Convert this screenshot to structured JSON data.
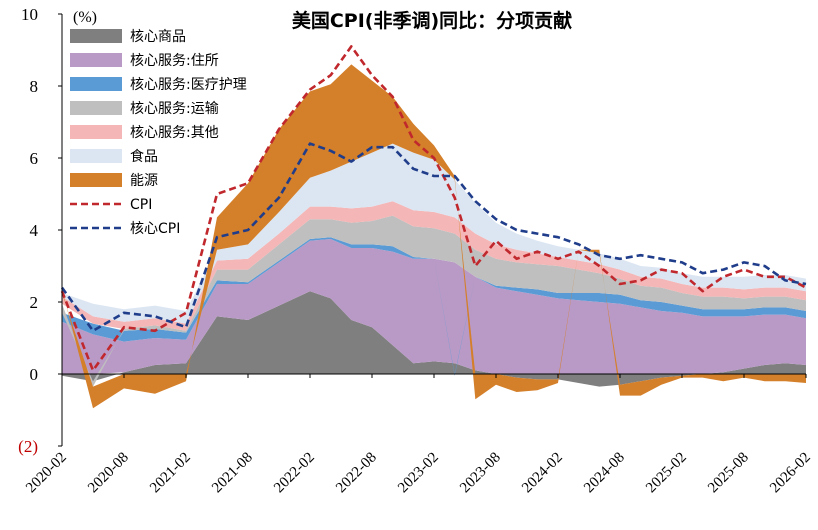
{
  "chart_data": {
    "type": "area",
    "title": "美国CPI(非季调)同比：分项贡献",
    "unit_label": "(%)",
    "ylim": [
      -2,
      10
    ],
    "yticks": [
      {
        "value": 10,
        "label": "10"
      },
      {
        "value": 8,
        "label": "8"
      },
      {
        "value": 6,
        "label": "6"
      },
      {
        "value": 4,
        "label": "4"
      },
      {
        "value": 2,
        "label": "2"
      },
      {
        "value": 0,
        "label": "0"
      },
      {
        "value": -2,
        "label": "(2)"
      }
    ],
    "x_tick_labels": [
      "2020-02",
      "2020-08",
      "2021-02",
      "2021-08",
      "2022-02",
      "2022-08",
      "2023-02",
      "2023-08",
      "2024-02",
      "2024-08",
      "2025-02",
      "2025-08",
      "2026-02"
    ],
    "x_months": [
      "2020-02",
      "2020-05",
      "2020-08",
      "2020-11",
      "2021-02",
      "2021-05",
      "2021-08",
      "2021-11",
      "2022-02",
      "2022-04",
      "2022-06",
      "2022-08",
      "2022-10",
      "2022-12",
      "2023-02",
      "2023-04",
      "2023-06",
      "2023-08",
      "2023-10",
      "2023-12",
      "2024-02",
      "2024-04",
      "2024-06",
      "2024-08",
      "2024-10",
      "2024-12",
      "2025-02",
      "2025-04",
      "2025-06",
      "2025-08",
      "2025-10",
      "2025-12",
      "2026-02"
    ],
    "series": [
      {
        "name": "核心商品",
        "kind": "area",
        "color": "#7f7f7f",
        "values": [
          -0.05,
          -0.2,
          0.05,
          0.25,
          0.3,
          1.6,
          1.5,
          1.9,
          2.3,
          2.1,
          1.5,
          1.3,
          0.8,
          0.3,
          0.35,
          0.3,
          0.1,
          0.0,
          -0.1,
          -0.15,
          -0.15,
          -0.25,
          -0.35,
          -0.3,
          -0.2,
          -0.1,
          -0.05,
          0.0,
          0.05,
          0.15,
          0.25,
          0.3,
          0.25
        ]
      },
      {
        "name": "核心服务:住所",
        "kind": "area",
        "color": "#b99ac6",
        "values": [
          1.45,
          1.1,
          0.85,
          0.75,
          0.65,
          0.9,
          1.0,
          1.2,
          1.4,
          1.65,
          2.0,
          2.2,
          2.6,
          2.9,
          2.85,
          2.8,
          2.6,
          2.4,
          2.3,
          2.2,
          2.1,
          2.05,
          2.0,
          1.95,
          1.85,
          1.75,
          1.7,
          1.6,
          1.55,
          1.45,
          1.4,
          1.35,
          1.3
        ]
      },
      {
        "name": "核心服务:医疗护理",
        "kind": "area",
        "color": "#5b9bd5",
        "values": [
          0.25,
          0.3,
          0.3,
          0.25,
          0.2,
          0.1,
          0.05,
          0.05,
          0.05,
          0.05,
          0.1,
          0.1,
          0.15,
          0.05,
          0.0,
          -0.05,
          0.0,
          0.05,
          0.1,
          0.15,
          0.15,
          0.2,
          0.25,
          0.25,
          0.2,
          0.25,
          0.2,
          0.2,
          0.2,
          0.2,
          0.2,
          0.2,
          0.2
        ]
      },
      {
        "name": "核心服务:运输",
        "kind": "area",
        "color": "#bfbfbf",
        "values": [
          0.25,
          -0.15,
          0.05,
          0.1,
          0.05,
          0.3,
          0.35,
          0.45,
          0.55,
          0.5,
          0.6,
          0.65,
          0.85,
          0.85,
          0.85,
          0.8,
          0.75,
          0.75,
          0.7,
          0.7,
          0.75,
          0.65,
          0.55,
          0.45,
          0.4,
          0.4,
          0.35,
          0.35,
          0.35,
          0.3,
          0.3,
          0.3,
          0.3
        ]
      },
      {
        "name": "核心服务:其他",
        "kind": "area",
        "color": "#f4b6b6",
        "values": [
          0.2,
          0.2,
          0.2,
          0.2,
          0.2,
          0.25,
          0.3,
          0.3,
          0.35,
          0.35,
          0.4,
          0.4,
          0.4,
          0.45,
          0.45,
          0.45,
          0.45,
          0.4,
          0.35,
          0.3,
          0.25,
          0.25,
          0.25,
          0.25,
          0.25,
          0.25,
          0.25,
          0.25,
          0.25,
          0.25,
          0.25,
          0.25,
          0.25
        ]
      },
      {
        "name": "食品",
        "kind": "area",
        "color": "#dce6f2",
        "values": [
          0.1,
          0.35,
          0.35,
          0.35,
          0.35,
          0.3,
          0.4,
          0.6,
          0.8,
          1.0,
          1.3,
          1.5,
          1.6,
          1.6,
          1.45,
          1.05,
          0.85,
          0.6,
          0.45,
          0.35,
          0.3,
          0.3,
          0.3,
          0.3,
          0.3,
          0.3,
          0.3,
          0.3,
          0.3,
          0.35,
          0.35,
          0.35,
          0.35
        ]
      },
      {
        "name": "能源",
        "kind": "area",
        "color": "#d47f2a",
        "values": [
          0.1,
          -0.6,
          -0.4,
          -0.55,
          -0.2,
          0.9,
          1.7,
          2.3,
          2.4,
          2.4,
          2.7,
          2.0,
          1.3,
          0.8,
          0.4,
          0.1,
          -0.7,
          -0.3,
          -0.4,
          -0.3,
          -0.1,
          0.0,
          0.1,
          -0.3,
          -0.4,
          -0.2,
          -0.05,
          -0.1,
          -0.2,
          -0.1,
          -0.2,
          -0.2,
          -0.25
        ]
      },
      {
        "name": "CPI",
        "kind": "line",
        "color": "#c0282d",
        "values": [
          2.3,
          0.1,
          1.3,
          1.2,
          1.7,
          5.0,
          5.3,
          6.8,
          7.9,
          8.3,
          9.1,
          8.3,
          7.7,
          6.5,
          6.0,
          4.9,
          3.0,
          3.7,
          3.2,
          3.4,
          3.2,
          3.4,
          3.0,
          2.5,
          2.6,
          2.9,
          2.8,
          2.3,
          2.7,
          2.9,
          2.7,
          2.7,
          2.4
        ]
      },
      {
        "name": "核心CPI",
        "kind": "line",
        "color": "#1f3d8a",
        "values": [
          2.4,
          1.2,
          1.7,
          1.6,
          1.3,
          3.8,
          4.0,
          4.9,
          6.4,
          6.2,
          5.9,
          6.3,
          6.3,
          5.7,
          5.5,
          5.5,
          4.8,
          4.3,
          4.0,
          3.9,
          3.8,
          3.6,
          3.3,
          3.2,
          3.3,
          3.2,
          3.1,
          2.8,
          2.9,
          3.1,
          3.0,
          2.6,
          2.5
        ]
      }
    ]
  }
}
